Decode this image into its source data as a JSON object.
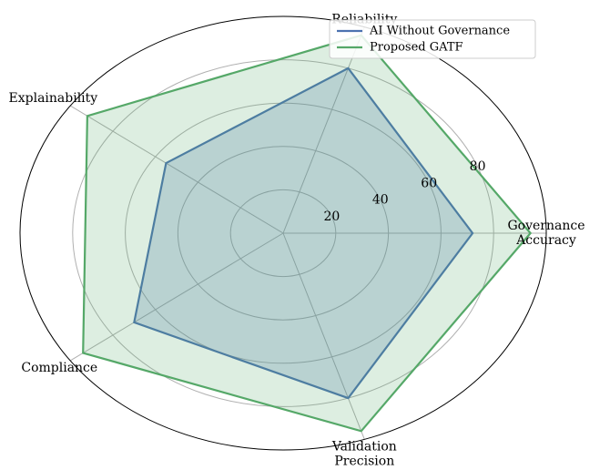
{
  "chart_data": {
    "type": "radar",
    "categories": [
      "Governance\nAccuracy",
      "Reliability",
      "Explainability",
      "Compliance",
      "Validation\nPrecision"
    ],
    "series": [
      {
        "name": "AI Without Governance",
        "color": "#4c72b0",
        "values": [
          72,
          80,
          55,
          70,
          80
        ]
      },
      {
        "name": "Proposed GATF",
        "color": "#55a868",
        "values": [
          94,
          96,
          92,
          94,
          96
        ]
      }
    ],
    "ylim": [
      0,
      100
    ],
    "yticks": [
      20,
      40,
      60,
      80
    ],
    "grid": true,
    "legend": "upper right"
  }
}
